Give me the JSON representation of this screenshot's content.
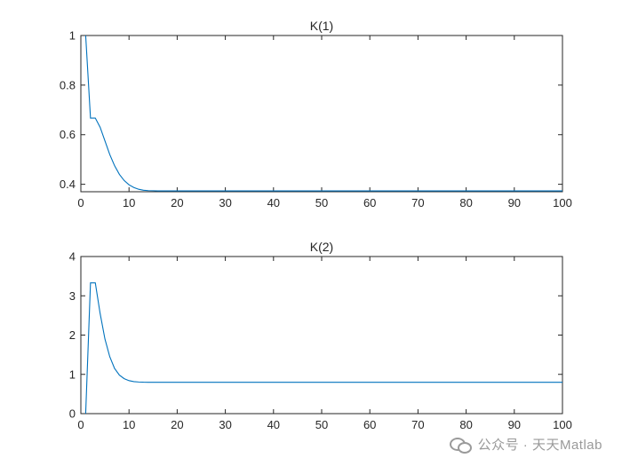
{
  "chart_data": [
    {
      "type": "line",
      "title": "K(1)",
      "xlabel": "",
      "ylabel": "",
      "xlim": [
        0,
        100
      ],
      "ylim": [
        0.37,
        1
      ],
      "xticks": [
        0,
        10,
        20,
        30,
        40,
        50,
        60,
        70,
        80,
        90,
        100
      ],
      "yticks": [
        0.4,
        0.6,
        0.8,
        1
      ],
      "ytick_labels": [
        "0.4",
        "0.6",
        "0.8",
        "1"
      ],
      "grid": false,
      "series": [
        {
          "color": "#0072BD",
          "x": [
            1,
            2,
            3,
            4,
            5,
            6,
            7,
            8,
            9,
            10,
            11,
            12,
            13,
            14,
            15,
            16,
            17,
            18,
            20,
            25,
            30,
            40,
            50,
            60,
            70,
            80,
            90,
            100
          ],
          "y": [
            1.0,
            0.667,
            0.667,
            0.63,
            0.575,
            0.52,
            0.475,
            0.44,
            0.415,
            0.398,
            0.387,
            0.38,
            0.376,
            0.3745,
            0.374,
            0.3735,
            0.3734,
            0.3733,
            0.3733,
            0.3733,
            0.3733,
            0.3733,
            0.3733,
            0.3733,
            0.3733,
            0.3733,
            0.3733,
            0.3733
          ]
        }
      ]
    },
    {
      "type": "line",
      "title": "K(2)",
      "xlabel": "",
      "ylabel": "",
      "xlim": [
        0,
        100
      ],
      "ylim": [
        0,
        4
      ],
      "xticks": [
        0,
        10,
        20,
        30,
        40,
        50,
        60,
        70,
        80,
        90,
        100
      ],
      "yticks": [
        0,
        1,
        2,
        3,
        4
      ],
      "ytick_labels": [
        "0",
        "1",
        "2",
        "3",
        "4"
      ],
      "grid": false,
      "series": [
        {
          "color": "#0072BD",
          "x": [
            1,
            2,
            3,
            4,
            5,
            6,
            7,
            8,
            9,
            10,
            11,
            12,
            13,
            14,
            15,
            16,
            18,
            20,
            25,
            30,
            40,
            50,
            60,
            70,
            80,
            90,
            100
          ],
          "y": [
            0.0,
            3.33,
            3.33,
            2.55,
            1.9,
            1.45,
            1.15,
            0.98,
            0.89,
            0.84,
            0.815,
            0.805,
            0.8,
            0.799,
            0.798,
            0.798,
            0.798,
            0.798,
            0.798,
            0.798,
            0.798,
            0.798,
            0.798,
            0.798,
            0.798,
            0.798,
            0.798
          ]
        }
      ]
    }
  ],
  "watermark": {
    "text": "公众号 · 天天Matlab",
    "icon": "wechat-icon"
  }
}
